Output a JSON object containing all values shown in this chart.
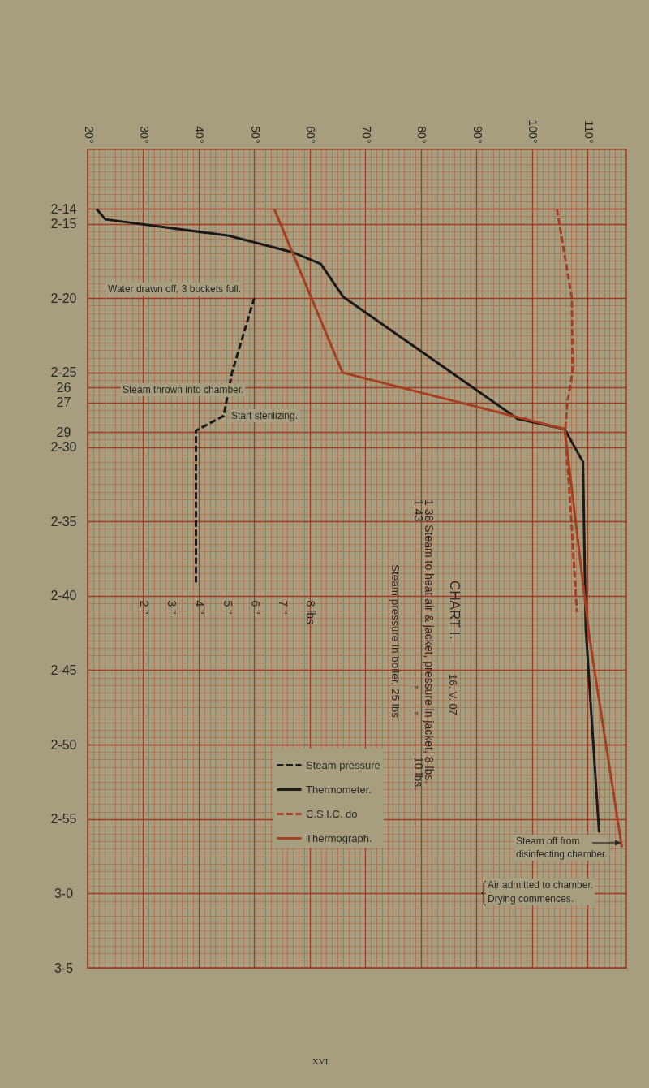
{
  "chart_data": {
    "type": "line",
    "title": "CHART I.",
    "subtitle": "16. V. 07",
    "xlim": [
      20,
      117
    ],
    "xticks": [
      {
        "value": 20,
        "label": "20°"
      },
      {
        "value": 30,
        "label": "30°"
      },
      {
        "value": 40,
        "label": "40°"
      },
      {
        "value": 50,
        "label": "50°"
      },
      {
        "value": 60,
        "label": "60°"
      },
      {
        "value": 70,
        "label": "70°"
      },
      {
        "value": 80,
        "label": "80°"
      },
      {
        "value": 90,
        "label": "90°"
      },
      {
        "value": 100,
        "label": "100°"
      },
      {
        "value": 110,
        "label": "110°"
      }
    ],
    "x2lim": [
      0,
      19.4
    ],
    "x2ticks": [
      {
        "value": 2,
        "label": "2 \""
      },
      {
        "value": 3,
        "label": "3 \""
      },
      {
        "value": 4,
        "label": "4 \""
      },
      {
        "value": 5,
        "label": "5 \""
      },
      {
        "value": 6,
        "label": "6 \""
      },
      {
        "value": 7,
        "label": "7 \""
      },
      {
        "value": 8,
        "label": "8 lbs"
      }
    ],
    "ylim": [
      65,
      10
    ],
    "yticks": [
      {
        "value": 14,
        "label": "2-14"
      },
      {
        "value": 15,
        "label": "2-15"
      },
      {
        "value": 20,
        "label": "2-20"
      },
      {
        "value": 25,
        "label": "2-25"
      },
      26,
      27,
      29,
      {
        "value": 30,
        "label": "2-30"
      },
      {
        "value": 35,
        "label": "2-35"
      },
      {
        "value": 40,
        "label": "2-40"
      },
      {
        "value": 45,
        "label": "2-45"
      },
      {
        "value": 50,
        "label": "2-50"
      },
      {
        "value": 55,
        "label": "2-55"
      },
      {
        "value": 60,
        "label": "3-0"
      },
      {
        "value": 65,
        "label": "3-5"
      }
    ],
    "grid": true,
    "legend": "bottom left",
    "series": [
      {
        "name": "Steam pressure",
        "color": "#1a1a1a",
        "line_style": "dashed",
        "axis": "x2",
        "x": [
          6.0,
          5.2,
          4.9,
          3.9,
          3.9
        ],
        "values": [
          20,
          25,
          27.9,
          28.9,
          39.1
        ]
      },
      {
        "name": "Thermometer.",
        "color": "#1a1a1a",
        "line_style": "solid",
        "x": [
          21.6,
          23.2,
          45.4,
          56.8,
          62.0,
          66.0,
          97.4,
          105.9,
          109.2,
          109.7,
          112.1
        ],
        "values": [
          14,
          14.7,
          15.8,
          16.9,
          17.7,
          19.9,
          28.1,
          28.8,
          31,
          42.2,
          55.9
        ]
      },
      {
        "name": "C.S.I.C. do",
        "color": "#a4401f",
        "line_style": "dashed",
        "x": [
          104.5,
          107.2,
          107.3,
          106.4,
          106.0,
          107.1,
          108.1
        ],
        "values": [
          14,
          20,
          25,
          27,
          28.9,
          34.9,
          41.1
        ]
      },
      {
        "name": "Thermograph.",
        "color": "#a4401f",
        "line_style": "solid",
        "x": [
          53.6,
          65.9,
          105.9,
          110.4,
          116.2
        ],
        "values": [
          14,
          25,
          28.8,
          42.9,
          56.9
        ]
      }
    ],
    "annotations": [
      "Water drawn off, 3 buckets full.",
      "Steam thrown into chamber.",
      "Start sterilizing.",
      "1 38 Steam to heat air & jacket, pressure in jacket, 8 lbs.",
      "1 43",
      "\"",
      "\"",
      "10 lbs.",
      "Steam pressure in boiler, 25 lbs.",
      "Steam off from\ndisinfecting chamber.",
      "Air admitted to chamber.\nDrying commences.",
      "XVI."
    ]
  }
}
